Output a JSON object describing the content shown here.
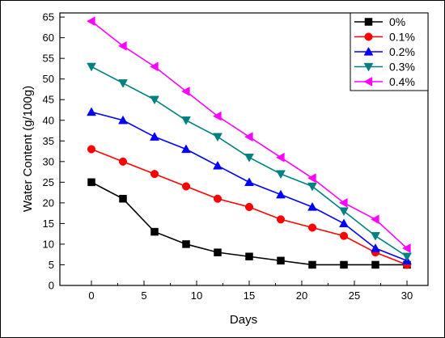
{
  "chart_data": {
    "type": "line",
    "xlabel": "Days",
    "ylabel": "Water Content (g/100g)",
    "xlim": [
      -3,
      32
    ],
    "ylim": [
      0,
      66
    ],
    "x_ticks": [
      0,
      5,
      10,
      15,
      20,
      25,
      30
    ],
    "y_ticks": [
      0,
      5,
      10,
      15,
      20,
      25,
      30,
      35,
      40,
      45,
      50,
      55,
      60,
      65
    ],
    "grid": false,
    "legend_position": "top-right",
    "x": [
      0,
      3,
      6,
      9,
      12,
      15,
      18,
      21,
      24,
      27,
      30
    ],
    "series": [
      {
        "name": "0%",
        "color": "#000000",
        "marker": "square",
        "values": [
          25,
          21,
          13,
          10,
          8,
          7,
          6,
          5,
          5,
          5,
          5
        ]
      },
      {
        "name": "0.1%",
        "color": "#ff0000",
        "marker": "circle",
        "values": [
          33,
          30,
          27,
          24,
          21,
          19,
          16,
          14,
          12,
          8,
          5
        ]
      },
      {
        "name": "0.2%",
        "color": "#0000ff",
        "marker": "triangle-up",
        "values": [
          42,
          40,
          36,
          33,
          29,
          25,
          22,
          19,
          15,
          9,
          6
        ]
      },
      {
        "name": "0.3%",
        "color": "#008080",
        "marker": "triangle-down",
        "values": [
          53,
          49,
          45,
          40,
          36,
          31,
          27,
          24,
          18,
          12,
          7
        ]
      },
      {
        "name": "0.4%",
        "color": "#ff00ff",
        "marker": "triangle-left",
        "values": [
          64,
          58,
          53,
          47,
          41,
          36,
          31,
          26,
          20,
          16,
          9
        ]
      }
    ]
  }
}
